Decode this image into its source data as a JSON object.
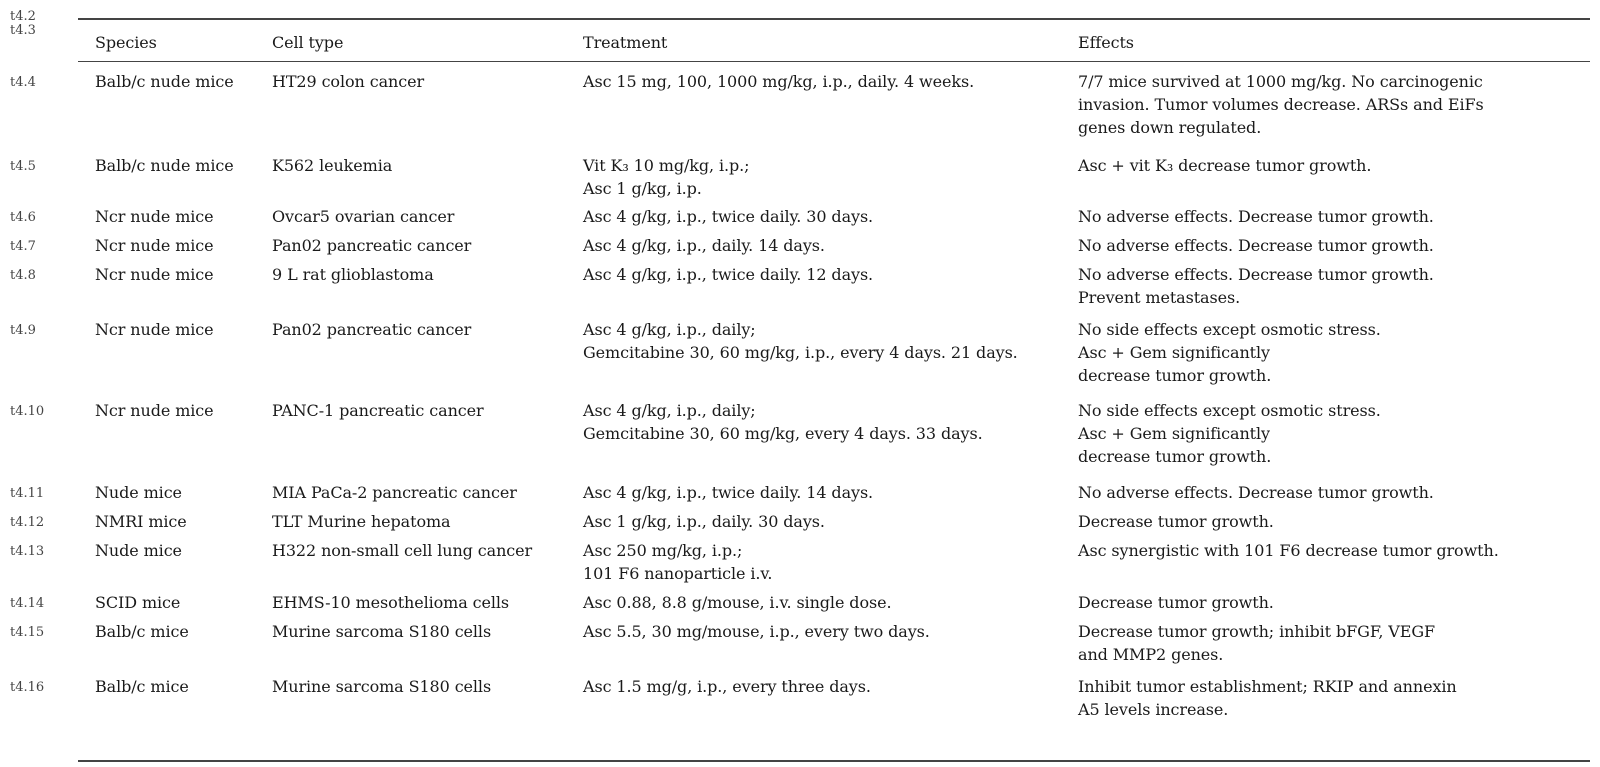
{
  "header_row_labels": [
    "t4.2",
    "t4.3"
  ],
  "columns": {
    "species": "Species",
    "cell_type": "Cell type",
    "treatment": "Treatment",
    "effects": "Effects"
  },
  "rows": [
    {
      "label": "t4.4",
      "species": "Balb/c nude mice",
      "cell_type": "HT29 colon cancer",
      "treatment": [
        "Asc 15 mg, 100, 1000 mg/kg, i.p., daily. 4 weeks."
      ],
      "effects": [
        "7/7 mice survived at 1000 mg/kg. No carcinogenic",
        "invasion. Tumor volumes decrease. ARSs and EiFs",
        "genes down regulated."
      ]
    },
    {
      "label": "t4.5",
      "species": "Balb/c nude mice",
      "cell_type": "K562 leukemia",
      "treatment": [
        "Vit K₃ 10 mg/kg, i.p.;",
        "Asc 1 g/kg, i.p."
      ],
      "effects": [
        "Asc + vit K₃ decrease tumor growth."
      ]
    },
    {
      "label": "t4.6",
      "species": "Ncr nude mice",
      "cell_type": "Ovcar5 ovarian cancer",
      "treatment": [
        "Asc 4 g/kg, i.p., twice daily. 30 days."
      ],
      "effects": [
        "No adverse effects. Decrease tumor growth."
      ]
    },
    {
      "label": "t4.7",
      "species": "Ncr nude mice",
      "cell_type": "Pan02 pancreatic cancer",
      "treatment": [
        "Asc 4 g/kg, i.p., daily. 14 days."
      ],
      "effects": [
        "No adverse effects. Decrease tumor growth."
      ]
    },
    {
      "label": "t4.8",
      "species": "Ncr nude mice",
      "cell_type": "9 L rat glioblastoma",
      "treatment": [
        "Asc 4 g/kg, i.p., twice daily. 12 days."
      ],
      "effects": [
        "No adverse effects. Decrease tumor growth.",
        "Prevent metastases."
      ]
    },
    {
      "label": "t4.9",
      "species": "Ncr nude mice",
      "cell_type": "Pan02 pancreatic cancer",
      "treatment": [
        "Asc 4 g/kg, i.p., daily;",
        "Gemcitabine 30, 60 mg/kg, i.p., every 4 days. 21 days."
      ],
      "effects": [
        "No side effects except osmotic stress.",
        "Asc + Gem significantly",
        "decrease tumor growth."
      ]
    },
    {
      "label": "t4.10",
      "species": "Ncr nude mice",
      "cell_type": "PANC-1 pancreatic cancer",
      "treatment": [
        "Asc 4 g/kg, i.p., daily;",
        "Gemcitabine 30, 60 mg/kg, every 4 days. 33 days."
      ],
      "effects": [
        "No side effects except osmotic stress.",
        "Asc + Gem significantly",
        "decrease tumor growth."
      ]
    },
    {
      "label": "t4.11",
      "species": "Nude mice",
      "cell_type": "MIA PaCa-2 pancreatic cancer",
      "treatment": [
        "Asc 4 g/kg, i.p., twice daily. 14 days."
      ],
      "effects": [
        "No adverse effects. Decrease tumor growth."
      ]
    },
    {
      "label": "t4.12",
      "species": "NMRI mice",
      "cell_type": "TLT Murine hepatoma",
      "treatment": [
        "Asc 1 g/kg, i.p., daily. 30 days."
      ],
      "effects": [
        "Decrease tumor growth."
      ]
    },
    {
      "label": "t4.13",
      "species": "Nude mice",
      "cell_type": "H322 non-small cell lung cancer",
      "treatment": [
        "Asc 250 mg/kg, i.p.;",
        "101 F6 nanoparticle i.v."
      ],
      "effects": [
        "Asc synergistic with 101 F6 decrease tumor growth."
      ]
    },
    {
      "label": "t4.14",
      "species": "SCID mice",
      "cell_type": "EHMS-10 mesothelioma cells",
      "treatment": [
        "Asc 0.88, 8.8 g/mouse, i.v. single dose."
      ],
      "effects": [
        "Decrease tumor growth."
      ]
    },
    {
      "label": "t4.15",
      "species": "Balb/c mice",
      "cell_type": "Murine sarcoma S180 cells",
      "treatment": [
        "Asc 5.5, 30 mg/mouse, i.p., every two days."
      ],
      "effects": [
        "Decrease tumor growth; inhibit bFGF, VEGF",
        "and MMP2 genes."
      ]
    },
    {
      "label": "t4.16",
      "species": "Balb/c mice",
      "cell_type": "Murine sarcoma S180 cells",
      "treatment": [
        "Asc 1.5 mg/g, i.p., every three days."
      ],
      "effects": [
        "Inhibit tumor establishment; RKIP and annexin",
        "A5 levels increase."
      ]
    }
  ]
}
